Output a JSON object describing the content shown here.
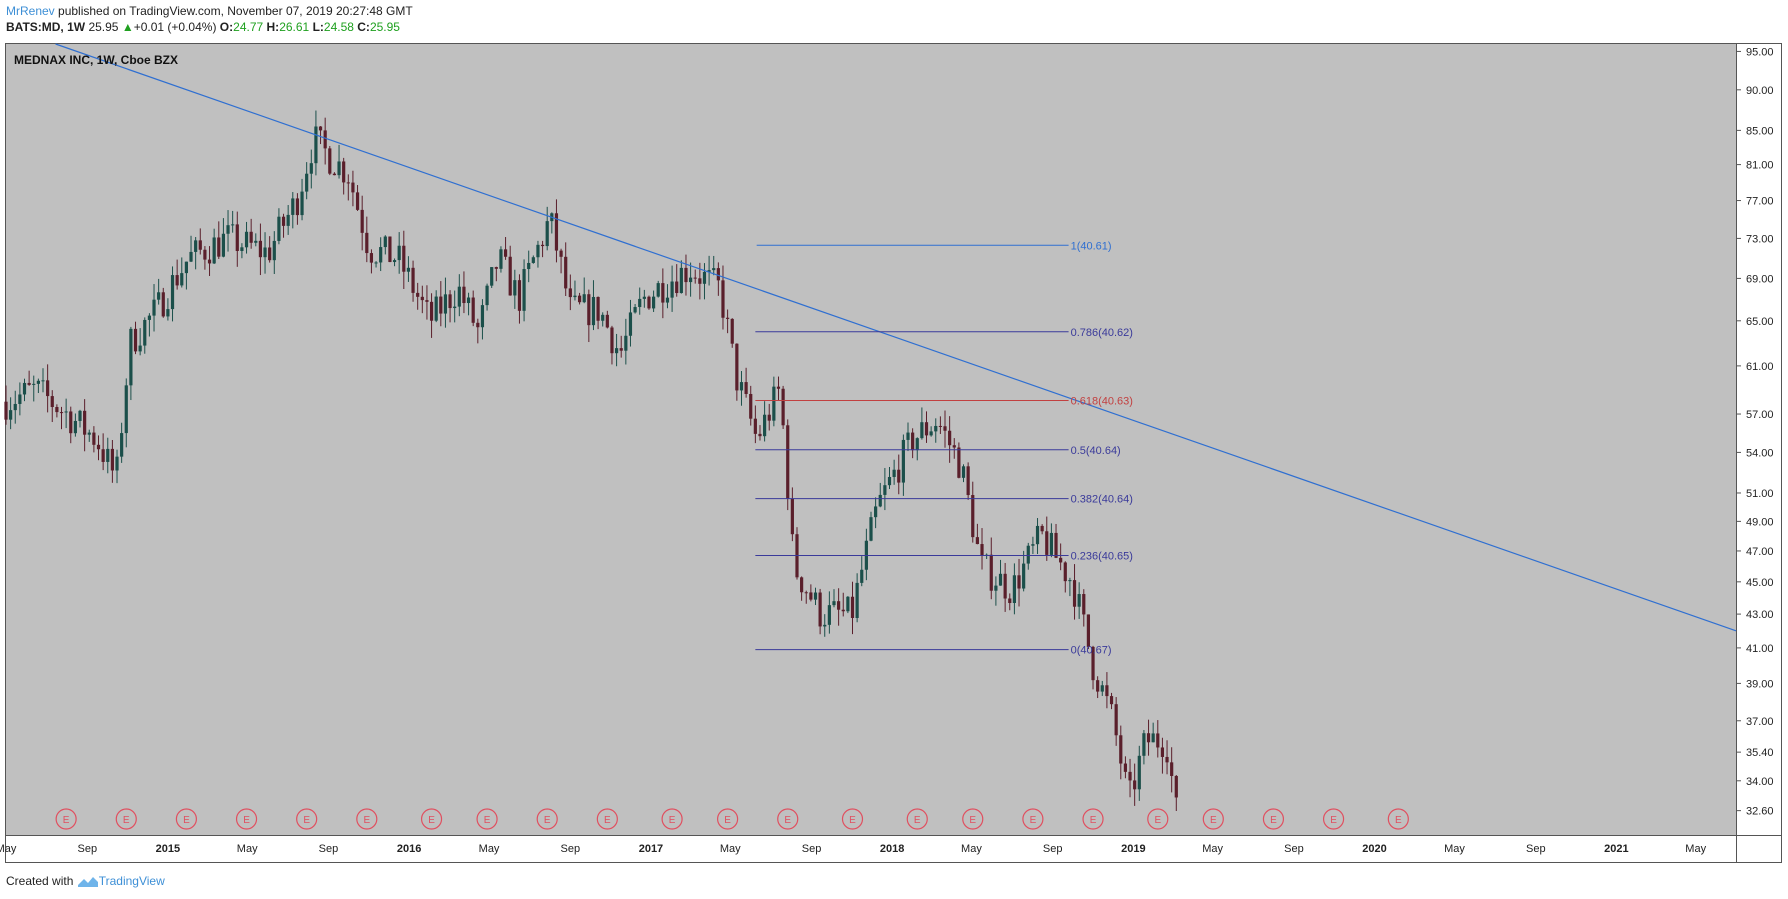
{
  "header": {
    "author": "MrRenev",
    "published_text": "published on TradingView.com, November 07, 2019 20:27:48 GMT",
    "symbol": "BATS:MD, 1W",
    "last": "25.95",
    "change": "+0.01 (+0.04%)",
    "open_label": "O:",
    "open": "24.77",
    "high_label": "H:",
    "high": "26.61",
    "low_label": "L:",
    "low": "24.58",
    "close_label": "C:",
    "close": "25.95"
  },
  "footer": {
    "created_with": "Created with",
    "brand": "TradingView"
  },
  "colors": {
    "background": "#c0c0c0",
    "trendline": "#2f6fd1",
    "fib_line": "#3a3a9a",
    "fib_highlight": "#c24040",
    "candle_up": "#1b4f4a",
    "candle_down": "#5a1f2b",
    "earnings": "#e05060"
  },
  "chart_data": {
    "type": "candlestick",
    "title": "MEDNAX INC, 1W, Cboe BZX",
    "y_ticks": [
      "95.00",
      "90.00",
      "85.00",
      "81.00",
      "77.00",
      "73.00",
      "69.00",
      "65.00",
      "61.00",
      "57.00",
      "54.00",
      "51.00",
      "49.00",
      "47.00",
      "45.00",
      "43.00",
      "41.00",
      "39.00",
      "37.00",
      "35.40",
      "34.00",
      "32.60"
    ],
    "ylim": [
      31.5,
      96
    ],
    "y_scale": "log",
    "x_ticks": [
      "May",
      "Sep",
      "2015",
      "May",
      "Sep",
      "2016",
      "May",
      "Sep",
      "2017",
      "May",
      "Sep",
      "2018",
      "May",
      "Sep",
      "2019",
      "May",
      "Sep",
      "2020",
      "May",
      "Sep",
      "2021",
      "May"
    ],
    "x_range": [
      "2014-05",
      "2021-07"
    ],
    "price_path": [
      [
        "2014-05-01",
        58.0
      ],
      [
        "2014-06-15",
        59.0
      ],
      [
        "2014-08-01",
        57.0
      ],
      [
        "2014-09-15",
        55.0
      ],
      [
        "2014-10-15",
        52.0
      ],
      [
        "2014-11-05",
        63.0
      ],
      [
        "2014-12-15",
        66.0
      ],
      [
        "2015-02-01",
        71.0
      ],
      [
        "2015-04-01",
        73.0
      ],
      [
        "2015-06-01",
        71.5
      ],
      [
        "2015-07-15",
        77.0
      ],
      [
        "2015-08-10",
        84.0
      ],
      [
        "2015-09-01",
        82.0
      ],
      [
        "2015-10-01",
        80.0
      ],
      [
        "2015-11-01",
        72.0
      ],
      [
        "2015-12-15",
        71.0
      ],
      [
        "2016-02-01",
        65.0
      ],
      [
        "2016-03-15",
        68.0
      ],
      [
        "2016-04-15",
        64.0
      ],
      [
        "2016-05-15",
        71.0
      ],
      [
        "2016-06-15",
        67.0
      ],
      [
        "2016-08-01",
        75.0
      ],
      [
        "2016-09-01",
        66.0
      ],
      [
        "2016-10-15",
        66.0
      ],
      [
        "2016-11-15",
        62.0
      ],
      [
        "2016-12-20",
        67.0
      ],
      [
        "2017-02-01",
        69.0
      ],
      [
        "2017-03-01",
        70.0
      ],
      [
        "2017-04-15",
        68.0
      ],
      [
        "2017-05-10",
        60.0
      ],
      [
        "2017-06-10",
        55.0
      ],
      [
        "2017-07-15",
        59.0
      ],
      [
        "2017-08-05",
        46.0
      ],
      [
        "2017-09-15",
        43.0
      ],
      [
        "2017-11-01",
        43.0
      ],
      [
        "2017-12-10",
        50.0
      ],
      [
        "2018-02-01",
        55.0
      ],
      [
        "2018-03-10",
        56.5
      ],
      [
        "2018-04-15",
        53.0
      ],
      [
        "2018-05-15",
        46.0
      ],
      [
        "2018-07-01",
        44.5
      ],
      [
        "2018-08-15",
        48.0
      ],
      [
        "2018-10-01",
        45.0
      ],
      [
        "2018-11-01",
        40.0
      ],
      [
        "2018-12-01",
        37.0
      ],
      [
        "2018-12-25",
        33.0
      ],
      [
        "2019-01-20",
        36.0
      ],
      [
        "2019-02-20",
        36.0
      ],
      [
        "2019-03-08",
        32.3
      ]
    ],
    "trendline": {
      "from": [
        "2014-07-15",
        96.0
      ],
      "to": [
        "2021-07-01",
        42.0
      ]
    },
    "fib_levels": [
      {
        "ratio": 1,
        "label": "1(40.61)",
        "price": 72.3,
        "from": "2017-06-10",
        "to": "2018-09-25"
      },
      {
        "ratio": 0.786,
        "label": "0.786(40.62)",
        "price": 64.0,
        "from": "2017-06-08",
        "to": "2018-09-25"
      },
      {
        "ratio": 0.618,
        "label": "0.618(40.63)",
        "price": 58.1,
        "from": "2017-06-08",
        "to": "2018-09-25"
      },
      {
        "ratio": 0.5,
        "label": "0.5(40.64)",
        "price": 54.2,
        "from": "2017-06-08",
        "to": "2018-09-25"
      },
      {
        "ratio": 0.382,
        "label": "0.382(40.64)",
        "price": 50.6,
        "from": "2017-06-08",
        "to": "2018-09-25"
      },
      {
        "ratio": 0.236,
        "label": "0.236(40.65)",
        "price": 46.7,
        "from": "2017-06-08",
        "to": "2018-09-25"
      },
      {
        "ratio": 0,
        "label": "0(40.67)",
        "price": 40.9,
        "from": "2017-06-08",
        "to": "2018-09-25"
      }
    ],
    "earnings_marker": "E",
    "earnings_dates": [
      "2014-07-31",
      "2014-10-30",
      "2015-01-29",
      "2015-04-30",
      "2015-07-30",
      "2015-10-29",
      "2016-02-04",
      "2016-04-28",
      "2016-07-28",
      "2016-10-27",
      "2017-02-02",
      "2017-04-27",
      "2017-07-27",
      "2017-11-02",
      "2018-02-08",
      "2018-05-03",
      "2018-08-02",
      "2018-11-01",
      "2019-02-07",
      "2019-05-02",
      "2019-08-01",
      "2019-10-31",
      "2020-02-06"
    ]
  }
}
